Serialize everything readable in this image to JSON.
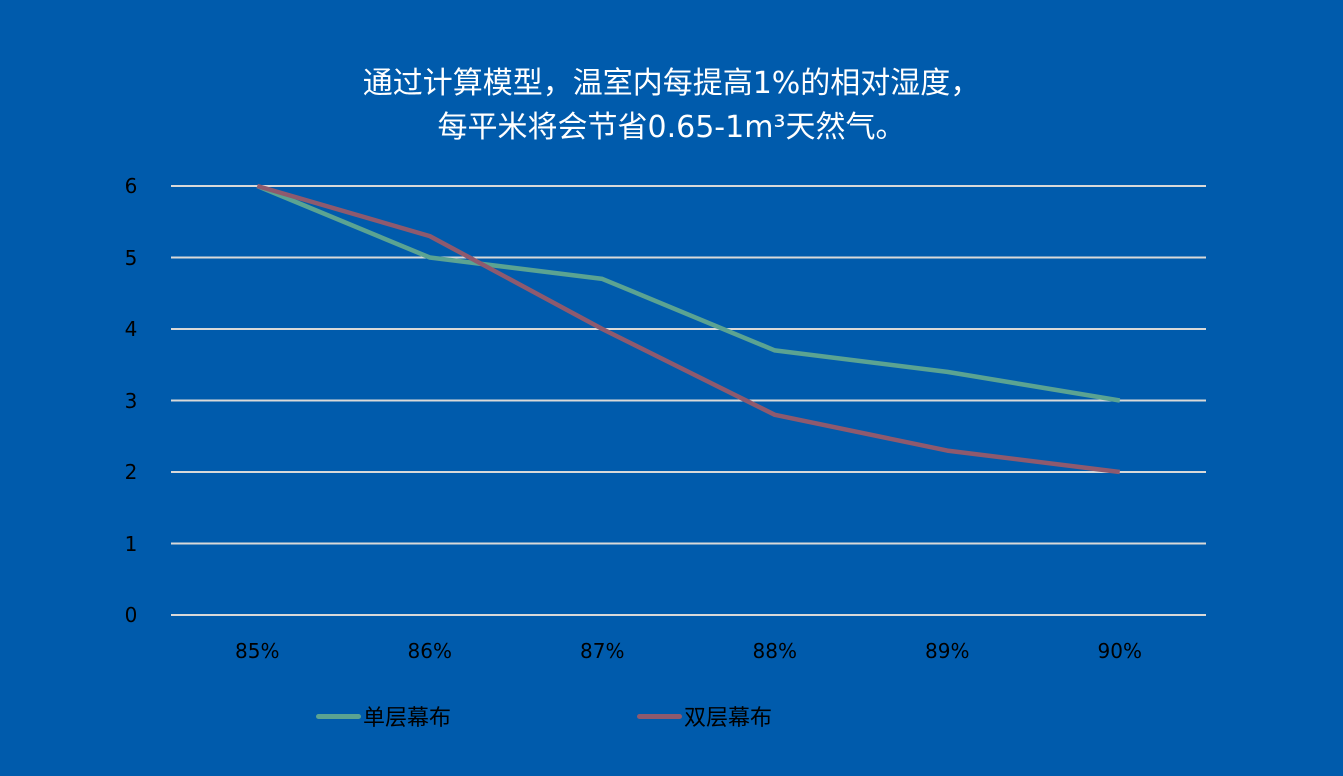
{
  "title": {
    "line1": "通过计算模型，温室内每提高1%的相对湿度，",
    "line2": "每平米将会节省0.65-1m³天然气。"
  },
  "colors": {
    "background": "#005BAC",
    "gridline": "#D9D9D9",
    "series_single": "#5BA392",
    "series_double": "#8E5A6E"
  },
  "chart_data": {
    "type": "line",
    "title": "通过计算模型，温室内每提高1%的相对湿度，每平米将会节省0.65-1m³天然气。",
    "xlabel": "",
    "ylabel": "",
    "categories": [
      "85%",
      "86%",
      "87%",
      "88%",
      "89%",
      "90%"
    ],
    "series": [
      {
        "name": "单层幕布",
        "values": [
          6.0,
          5.0,
          4.7,
          3.7,
          3.4,
          3.0
        ],
        "color": "#5BA392"
      },
      {
        "name": "双层幕布",
        "values": [
          6.0,
          5.3,
          4.0,
          2.8,
          2.3,
          2.0
        ],
        "color": "#8E5A6E"
      }
    ],
    "ylim": [
      0,
      6
    ],
    "yticks": [
      "0",
      "1",
      "2",
      "3",
      "4",
      "5",
      "6"
    ],
    "grid": true,
    "legend_position": "bottom"
  },
  "legend": {
    "items": [
      {
        "label": "单层幕布"
      },
      {
        "label": "双层幕布"
      }
    ]
  }
}
